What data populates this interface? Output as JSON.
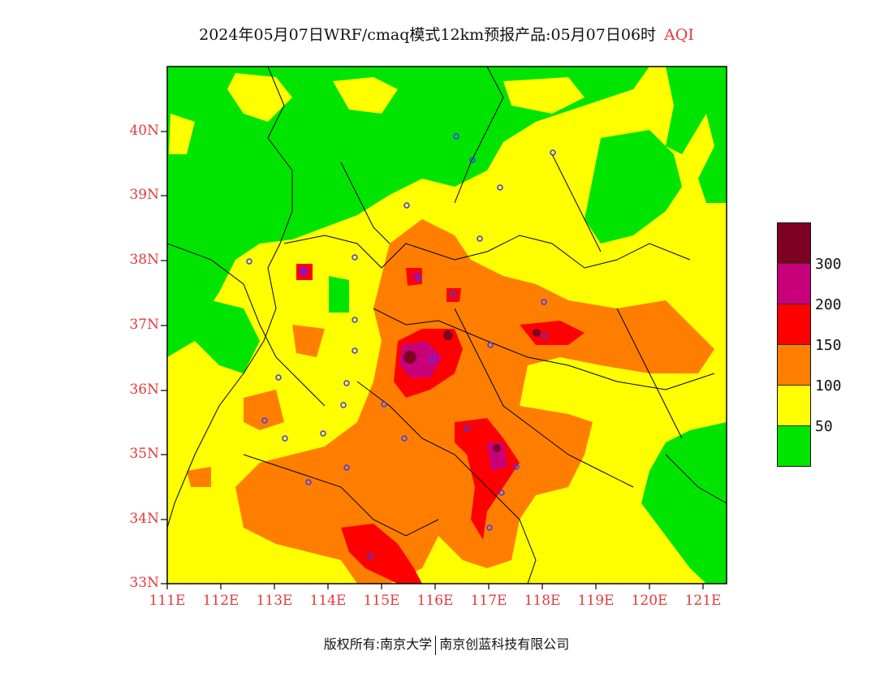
{
  "title": {
    "main": "2024年05月07日WRF/cmaq模式12km预报产品:05月07日06时",
    "variable": "AQI"
  },
  "map": {
    "lat_range": [
      33,
      41
    ],
    "lon_range": [
      111,
      121.5
    ],
    "lat_labels": [
      "40N",
      "39N",
      "38N",
      "37N",
      "36N",
      "35N",
      "34N",
      "33N"
    ],
    "lon_labels": [
      "111E",
      "112E",
      "113E",
      "114E",
      "115E",
      "116E",
      "117E",
      "118E",
      "119E",
      "120E",
      "121E"
    ],
    "label_color": "#e23a3a"
  },
  "legend": {
    "colors": [
      "#7e0023",
      "#c8007a",
      "#ff0000",
      "#ff7e00",
      "#ffff00",
      "#00e400"
    ],
    "values": [
      "300",
      "200",
      "150",
      "100",
      "50"
    ]
  },
  "footer": {
    "copyright": "版权所有:南京大学",
    "company": "南京创蓝科技有限公司"
  }
}
